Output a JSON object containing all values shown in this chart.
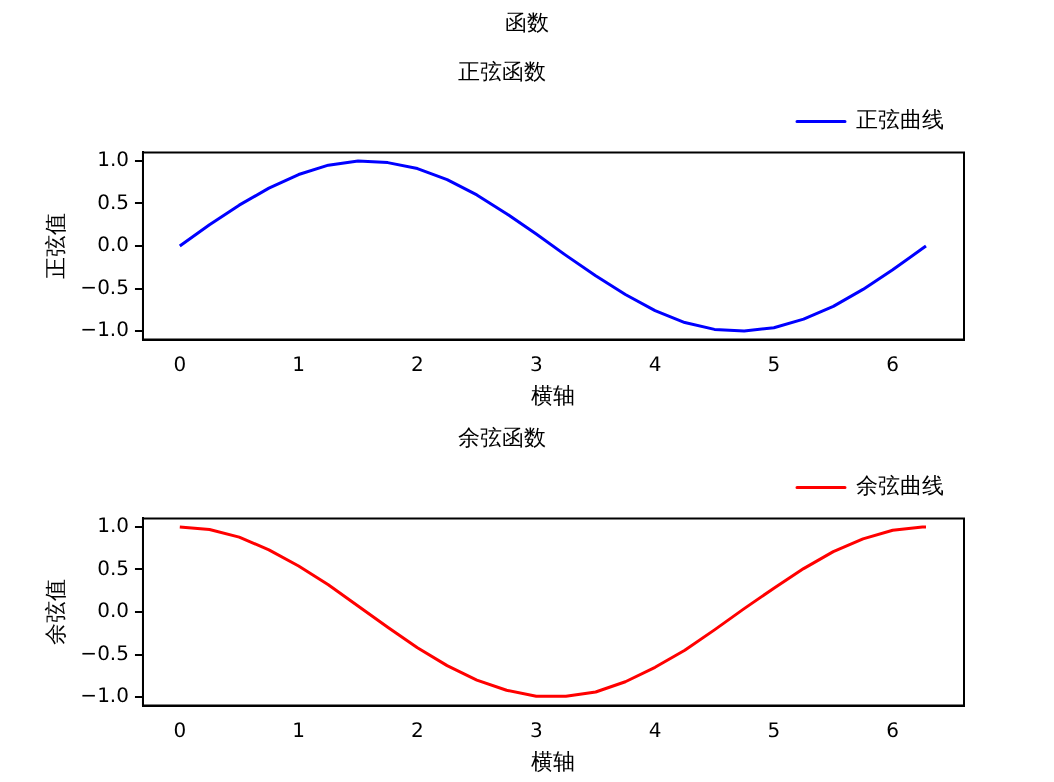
{
  "chart_data": [
    {
      "type": "line",
      "title": "正弦函数",
      "xlabel": "横轴",
      "ylabel": "正弦值",
      "annotations": [
        "函数"
      ],
      "x": [
        0,
        0.25,
        0.5,
        0.75,
        1,
        1.25,
        1.5,
        1.75,
        2,
        2.25,
        2.5,
        2.75,
        3,
        3.25,
        3.5,
        3.75,
        4,
        4.25,
        4.5,
        4.75,
        5,
        5.25,
        5.5,
        5.75,
        6,
        6.25,
        6.28
      ],
      "series": [
        {
          "name": "正弦曲线",
          "color": "#0000ff",
          "values": [
            0,
            0.25,
            0.48,
            0.68,
            0.84,
            0.95,
            1.0,
            0.98,
            0.91,
            0.78,
            0.6,
            0.38,
            0.14,
            -0.11,
            -0.35,
            -0.57,
            -0.76,
            -0.9,
            -0.98,
            -1.0,
            -0.96,
            -0.86,
            -0.71,
            -0.51,
            -0.28,
            -0.03,
            0
          ]
        }
      ],
      "xlim": [
        -0.31,
        6.6
      ],
      "xticks": [
        0,
        1,
        2,
        3,
        4,
        5,
        6
      ],
      "ylim": [
        -1.1,
        1.1
      ],
      "yticks": [
        {
          "value": -1,
          "label": "−1.0"
        },
        {
          "value": -0.5,
          "label": "−0.5"
        },
        {
          "value": 0,
          "label": "0.0"
        },
        {
          "value": 0.5,
          "label": "0.5"
        },
        {
          "value": 1,
          "label": "1.0"
        }
      ],
      "grid": false,
      "legend": "top right",
      "marker": "none",
      "line_style": "solid"
    },
    {
      "type": "line",
      "title": "余弦函数",
      "xlabel": "横轴",
      "ylabel": "余弦值",
      "x": [
        0,
        0.25,
        0.5,
        0.75,
        1,
        1.25,
        1.5,
        1.75,
        2,
        2.25,
        2.5,
        2.75,
        3,
        3.25,
        3.5,
        3.75,
        4,
        4.25,
        4.5,
        4.75,
        5,
        5.25,
        5.5,
        5.75,
        6,
        6.25,
        6.28
      ],
      "series": [
        {
          "name": "余弦曲线",
          "color": "#ff0000",
          "values": [
            1,
            0.97,
            0.88,
            0.73,
            0.54,
            0.32,
            0.07,
            -0.18,
            -0.42,
            -0.63,
            -0.8,
            -0.92,
            -0.99,
            -0.99,
            -0.94,
            -0.82,
            -0.65,
            -0.45,
            -0.21,
            0.04,
            0.28,
            0.51,
            0.71,
            0.86,
            0.96,
            1.0,
            1.0
          ]
        }
      ],
      "xlim": [
        -0.31,
        6.6
      ],
      "xticks": [
        0,
        1,
        2,
        3,
        4,
        5,
        6
      ],
      "ylim": [
        -1.1,
        1.1
      ],
      "yticks": [
        {
          "value": -1,
          "label": "−1.0"
        },
        {
          "value": -0.5,
          "label": "−0.5"
        },
        {
          "value": 0,
          "label": "0.0"
        },
        {
          "value": 0.5,
          "label": "0.5"
        },
        {
          "value": 1,
          "label": "1.0"
        }
      ],
      "grid": false,
      "legend": "top right",
      "marker": "none",
      "line_style": "solid"
    }
  ]
}
